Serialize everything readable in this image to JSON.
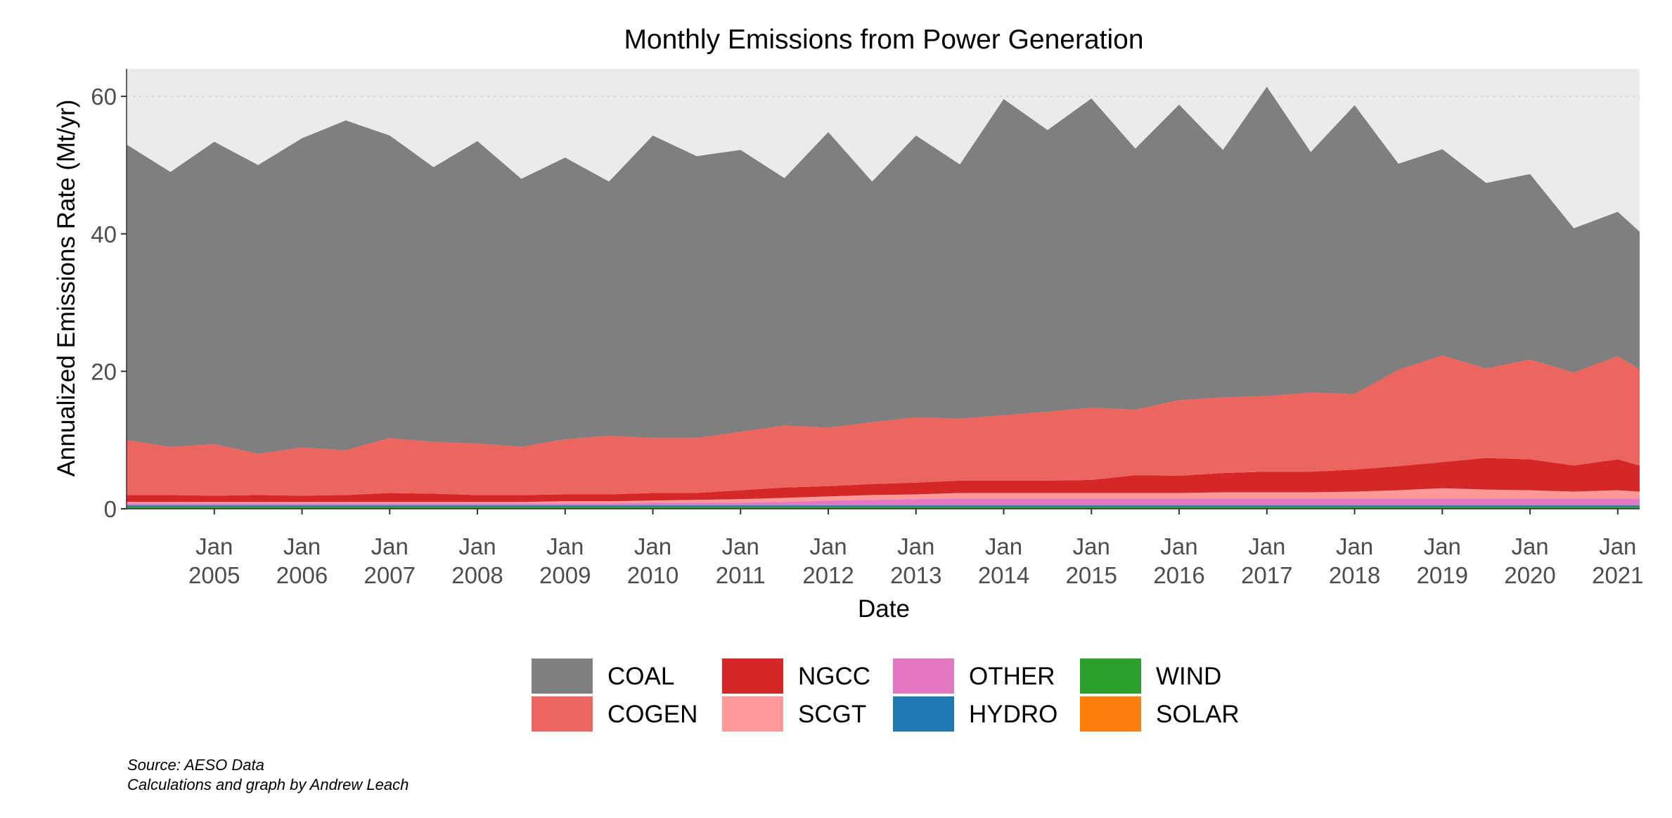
{
  "chart_data": {
    "type": "area",
    "stacked": true,
    "title": "Monthly Emissions from Power Generation",
    "xlabel": "Date",
    "ylabel": "Annualized Emissions Rate (Mt/yr)",
    "xlim": [
      "2004-01",
      "2021-04"
    ],
    "ylim": [
      0,
      64
    ],
    "y_ticks": [
      "0",
      "20",
      "40",
      "60"
    ],
    "x_ticks": [
      {
        "line1": "Jan",
        "line2": "2005"
      },
      {
        "line1": "Jan",
        "line2": "2006"
      },
      {
        "line1": "Jan",
        "line2": "2007"
      },
      {
        "line1": "Jan",
        "line2": "2008"
      },
      {
        "line1": "Jan",
        "line2": "2009"
      },
      {
        "line1": "Jan",
        "line2": "2010"
      },
      {
        "line1": "Jan",
        "line2": "2011"
      },
      {
        "line1": "Jan",
        "line2": "2012"
      },
      {
        "line1": "Jan",
        "line2": "2013"
      },
      {
        "line1": "Jan",
        "line2": "2014"
      },
      {
        "line1": "Jan",
        "line2": "2015"
      },
      {
        "line1": "Jan",
        "line2": "2016"
      },
      {
        "line1": "Jan",
        "line2": "2017"
      },
      {
        "line1": "Jan",
        "line2": "2018"
      },
      {
        "line1": "Jan",
        "line2": "2019"
      },
      {
        "line1": "Jan",
        "line2": "2020"
      },
      {
        "line1": "Jan",
        "line2": "2021"
      }
    ],
    "grid": true,
    "legend_position": "bottom",
    "x_dates": [
      "2004-01",
      "2004-07",
      "2005-01",
      "2005-07",
      "2006-01",
      "2006-07",
      "2007-01",
      "2007-07",
      "2008-01",
      "2008-07",
      "2009-01",
      "2009-07",
      "2010-01",
      "2010-07",
      "2011-01",
      "2011-07",
      "2012-01",
      "2012-07",
      "2013-01",
      "2013-07",
      "2014-01",
      "2014-07",
      "2015-01",
      "2015-07",
      "2016-01",
      "2016-07",
      "2017-01",
      "2017-07",
      "2018-01",
      "2018-07",
      "2019-01",
      "2019-07",
      "2020-01",
      "2020-07",
      "2021-01",
      "2021-04"
    ],
    "series": [
      {
        "name": "WIND",
        "color": "#2ca02c",
        "values": [
          0.3,
          0.3,
          0.3,
          0.3,
          0.3,
          0.3,
          0.3,
          0.3,
          0.3,
          0.3,
          0.3,
          0.3,
          0.3,
          0.3,
          0.3,
          0.3,
          0.3,
          0.3,
          0.3,
          0.3,
          0.3,
          0.3,
          0.3,
          0.3,
          0.3,
          0.3,
          0.3,
          0.3,
          0.3,
          0.3,
          0.3,
          0.3,
          0.3,
          0.3,
          0.3,
          0.3
        ]
      },
      {
        "name": "SOLAR",
        "color": "#ff7f0e",
        "values": [
          0,
          0,
          0,
          0,
          0,
          0,
          0,
          0,
          0,
          0,
          0,
          0,
          0,
          0,
          0,
          0,
          0,
          0,
          0,
          0,
          0,
          0,
          0,
          0,
          0,
          0,
          0,
          0,
          0,
          0,
          0,
          0,
          0,
          0,
          0,
          0
        ]
      },
      {
        "name": "HYDRO",
        "color": "#1f77b4",
        "values": [
          0.2,
          0.2,
          0.2,
          0.2,
          0.2,
          0.2,
          0.2,
          0.2,
          0.2,
          0.2,
          0.2,
          0.2,
          0.2,
          0.2,
          0.2,
          0.2,
          0.2,
          0.2,
          0.2,
          0.2,
          0.2,
          0.2,
          0.2,
          0.2,
          0.2,
          0.2,
          0.2,
          0.2,
          0.2,
          0.2,
          0.2,
          0.2,
          0.2,
          0.2,
          0.2,
          0.2
        ]
      },
      {
        "name": "OTHER",
        "color": "#e377c2",
        "values": [
          0.3,
          0.3,
          0.3,
          0.3,
          0.3,
          0.3,
          0.3,
          0.3,
          0.3,
          0.3,
          0.3,
          0.3,
          0.4,
          0.4,
          0.4,
          0.5,
          0.7,
          0.8,
          0.9,
          1.0,
          1.0,
          1.0,
          1.0,
          1.0,
          1.0,
          1.0,
          1.0,
          1.0,
          1.0,
          1.0,
          1.0,
          1.0,
          1.0,
          1.0,
          1.0,
          1.0
        ]
      },
      {
        "name": "SCGT",
        "color": "#ff9896",
        "values": [
          0.2,
          0.2,
          0.2,
          0.2,
          0.2,
          0.2,
          0.2,
          0.2,
          0.2,
          0.2,
          0.3,
          0.3,
          0.3,
          0.4,
          0.5,
          0.6,
          0.6,
          0.7,
          0.7,
          0.8,
          0.8,
          0.8,
          0.8,
          0.8,
          0.8,
          0.9,
          0.9,
          0.9,
          1.0,
          1.2,
          1.5,
          1.3,
          1.2,
          1.0,
          1.2,
          1.0
        ]
      },
      {
        "name": "NGCC",
        "color": "#d62728",
        "values": [
          1.0,
          1.0,
          0.9,
          1.0,
          0.9,
          1.0,
          1.3,
          1.2,
          1.0,
          1.0,
          1.0,
          1.0,
          1.1,
          1.0,
          1.3,
          1.5,
          1.5,
          1.6,
          1.7,
          1.8,
          1.8,
          1.8,
          1.9,
          2.6,
          2.5,
          2.8,
          3.0,
          3.0,
          3.2,
          3.5,
          3.8,
          4.6,
          4.5,
          3.8,
          4.5,
          3.8
        ]
      },
      {
        "name": "COGEN",
        "color": "#eb665e",
        "values": [
          8.0,
          7.0,
          7.5,
          6.0,
          7.0,
          6.5,
          8.0,
          7.5,
          7.5,
          7.0,
          8.0,
          8.5,
          8.0,
          8.0,
          8.5,
          9.0,
          8.5,
          9.0,
          9.5,
          9.0,
          9.5,
          10.0,
          10.5,
          9.5,
          11.0,
          11.0,
          11.0,
          11.5,
          11.0,
          14.0,
          15.5,
          13.0,
          14.5,
          13.5,
          15.0,
          14.0
        ]
      },
      {
        "name": "COAL",
        "color": "#7f7f7f",
        "values": [
          43,
          40,
          44,
          42,
          45,
          48,
          44,
          40,
          44,
          39,
          41,
          37,
          44,
          41,
          41,
          36,
          43,
          35,
          41,
          37,
          46,
          41,
          45,
          38,
          43,
          36,
          45,
          35,
          42,
          30,
          30,
          27,
          27,
          21,
          21,
          20
        ]
      }
    ]
  },
  "caption": {
    "source": "Source: AESO Data",
    "credit": "Calculations and graph by Andrew Leach"
  }
}
